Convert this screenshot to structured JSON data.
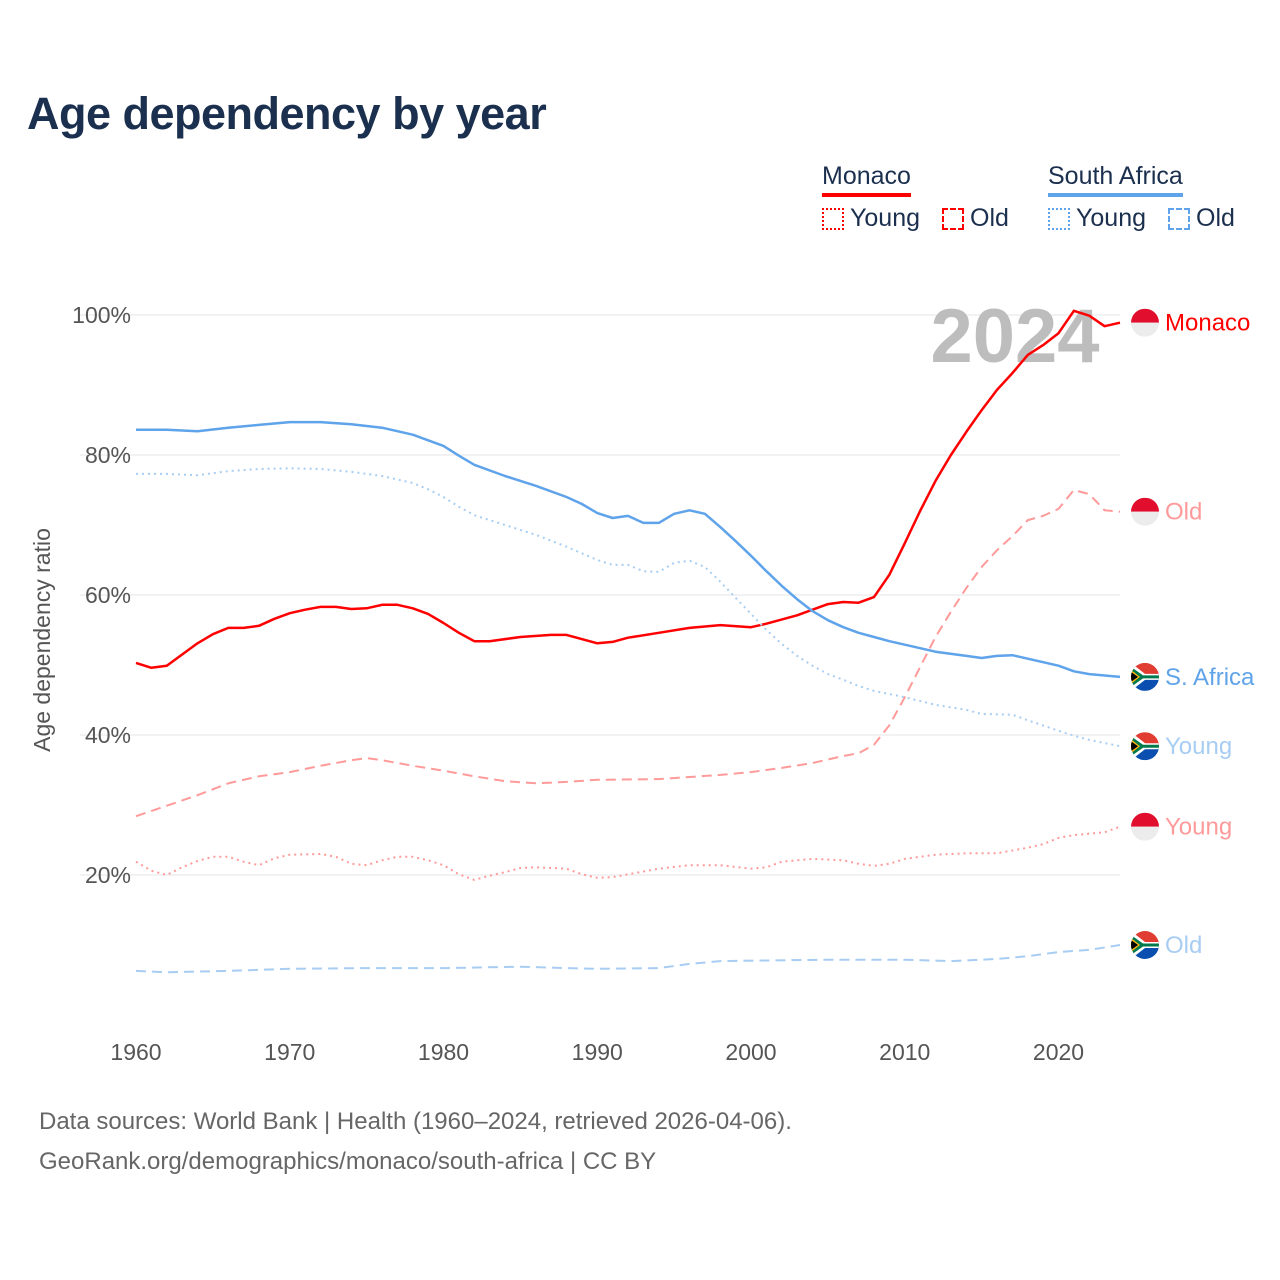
{
  "title": "Age dependency by year",
  "legend": {
    "countries": [
      {
        "name": "Monaco",
        "color": "#ff0000",
        "items": [
          {
            "label": "Young",
            "style": "dotted"
          },
          {
            "label": "Old",
            "style": "dashed"
          }
        ]
      },
      {
        "name": "South Africa",
        "color": "#5fa3ea",
        "items": [
          {
            "label": "Young",
            "style": "dotted"
          },
          {
            "label": "Old",
            "style": "dashed"
          }
        ]
      }
    ]
  },
  "year_watermark": "2024",
  "footer": {
    "line1": "Data sources: World Bank | Health (1960–2024, retrieved 2026-04-06).",
    "line2": "GeoRank.org/demographics/monaco/south-africa | CC BY"
  },
  "chart_data": {
    "type": "line",
    "title": "Age dependency by year",
    "xlabel": "",
    "ylabel": "Age dependency ratio",
    "xlim": [
      1960,
      2024
    ],
    "ylim": [
      0,
      100
    ],
    "x_ticks": [
      1960,
      1970,
      1980,
      1990,
      2000,
      2010,
      2020
    ],
    "y_ticks": [
      20,
      40,
      60,
      80,
      100
    ],
    "y_tick_labels": [
      "20%",
      "40%",
      "60%",
      "80%",
      "100%"
    ],
    "grid": true,
    "series": [
      {
        "name": "Monaco",
        "end_label": "Monaco",
        "country": "monaco",
        "color": "#ff0000",
        "dash": "solid",
        "x": [
          1960,
          1961,
          1962,
          1964,
          1965,
          1966,
          1967,
          1968,
          1969,
          1970,
          1971,
          1972,
          1973,
          1974,
          1975,
          1976,
          1977,
          1978,
          1979,
          1980,
          1981,
          1982,
          1983,
          1985,
          1987,
          1988,
          1990,
          1991,
          1992,
          1994,
          1996,
          1998,
          2000,
          2001,
          2003,
          2005,
          2006,
          2007,
          2008,
          2009,
          2010,
          2011,
          2012,
          2013,
          2014,
          2015,
          2016,
          2017,
          2018,
          2019,
          2020,
          2021,
          2022,
          2023,
          2024
        ],
        "y": [
          50.3,
          49.6,
          49.9,
          53.1,
          54.4,
          55.3,
          55.3,
          55.6,
          56.6,
          57.4,
          57.9,
          58.3,
          58.3,
          58.0,
          58.1,
          58.6,
          58.6,
          58.1,
          57.3,
          56.0,
          54.6,
          53.4,
          53.4,
          54.0,
          54.3,
          54.3,
          53.1,
          53.3,
          53.9,
          54.6,
          55.3,
          55.7,
          55.4,
          55.9,
          57.1,
          58.7,
          59.0,
          58.9,
          59.7,
          62.9,
          67.4,
          72.0,
          76.3,
          80.0,
          83.3,
          86.4,
          89.3,
          91.7,
          94.3,
          95.7,
          97.4,
          100.6,
          99.9,
          98.4,
          98.9
        ]
      },
      {
        "name": "Monaco Old",
        "end_label": "Old",
        "country": "monaco",
        "color": "#ff9a9a",
        "dash": "dashed",
        "x": [
          1960,
          1962,
          1964,
          1966,
          1968,
          1970,
          1972,
          1974,
          1975,
          1976,
          1978,
          1980,
          1982,
          1984,
          1986,
          1988,
          1990,
          1994,
          1996,
          1998,
          2000,
          2002,
          2004,
          2006,
          2007,
          2008,
          2009,
          2010,
          2011,
          2012,
          2013,
          2014,
          2015,
          2016,
          2017,
          2018,
          2019,
          2020,
          2021,
          2022,
          2023,
          2024
        ],
        "y": [
          28.4,
          29.9,
          31.4,
          33.1,
          34.1,
          34.7,
          35.6,
          36.4,
          36.7,
          36.4,
          35.6,
          34.9,
          34.1,
          33.4,
          33.1,
          33.3,
          33.6,
          33.7,
          34.0,
          34.3,
          34.7,
          35.3,
          36.0,
          37.0,
          37.4,
          38.6,
          41.4,
          45.4,
          49.7,
          54.0,
          57.6,
          61.0,
          64.0,
          66.4,
          68.4,
          70.7,
          71.3,
          72.3,
          75.0,
          74.4,
          72.1,
          71.9
        ]
      },
      {
        "name": "South Africa",
        "end_label": "S. Africa",
        "country": "south-africa",
        "color": "#5fa3ea",
        "dash": "solid",
        "x": [
          1960,
          1962,
          1964,
          1966,
          1968,
          1970,
          1972,
          1974,
          1976,
          1977,
          1978,
          1980,
          1981,
          1982,
          1984,
          1986,
          1988,
          1989,
          1990,
          1991,
          1992,
          1993,
          1994,
          1995,
          1996,
          1997,
          1998,
          1999,
          2000,
          2001,
          2002,
          2003,
          2004,
          2005,
          2006,
          2007,
          2008,
          2009,
          2010,
          2012,
          2014,
          2015,
          2016,
          2017,
          2018,
          2020,
          2021,
          2022,
          2024
        ],
        "y": [
          83.6,
          83.6,
          83.4,
          83.9,
          84.3,
          84.7,
          84.7,
          84.4,
          83.9,
          83.4,
          82.9,
          81.3,
          79.9,
          78.6,
          77.0,
          75.6,
          74.0,
          73.0,
          71.7,
          71.0,
          71.3,
          70.3,
          70.3,
          71.6,
          72.1,
          71.6,
          69.7,
          67.7,
          65.6,
          63.4,
          61.3,
          59.4,
          57.7,
          56.4,
          55.4,
          54.6,
          54.0,
          53.4,
          52.9,
          51.9,
          51.3,
          51.0,
          51.3,
          51.4,
          50.9,
          49.9,
          49.1,
          48.7,
          48.3
        ]
      },
      {
        "name": "South Africa Young",
        "end_label": "Young",
        "country": "south-africa",
        "color": "#a8cdf3",
        "dash": "dotted",
        "x": [
          1960,
          1962,
          1964,
          1966,
          1968,
          1970,
          1972,
          1974,
          1976,
          1978,
          1979,
          1980,
          1981,
          1982,
          1984,
          1986,
          1988,
          1990,
          1991,
          1992,
          1993,
          1994,
          1995,
          1996,
          1997,
          1998,
          1999,
          2000,
          2001,
          2002,
          2003,
          2004,
          2005,
          2006,
          2007,
          2008,
          2010,
          2012,
          2014,
          2015,
          2017,
          2018,
          2020,
          2021,
          2022,
          2024
        ],
        "y": [
          77.3,
          77.3,
          77.1,
          77.7,
          78.0,
          78.1,
          78.0,
          77.6,
          77.0,
          76.0,
          75.1,
          74.0,
          72.6,
          71.4,
          70.0,
          68.6,
          66.9,
          65.0,
          64.3,
          64.3,
          63.4,
          63.3,
          64.6,
          64.9,
          64.0,
          61.9,
          59.6,
          57.3,
          55.0,
          53.0,
          51.3,
          49.9,
          48.7,
          47.9,
          47.0,
          46.3,
          45.4,
          44.3,
          43.6,
          43.0,
          42.9,
          42.1,
          40.6,
          39.9,
          39.3,
          38.4
        ]
      },
      {
        "name": "Monaco Young",
        "end_label": "Young",
        "country": "monaco",
        "color": "#ff9a9a",
        "dash": "dotted",
        "x": [
          1960,
          1961,
          1962,
          1963,
          1964,
          1965,
          1966,
          1967,
          1968,
          1969,
          1970,
          1972,
          1973,
          1974,
          1975,
          1976,
          1977,
          1978,
          1979,
          1980,
          1981,
          1982,
          1983,
          1984,
          1985,
          1986,
          1988,
          1989,
          1990,
          1991,
          1992,
          1994,
          1996,
          1998,
          2000,
          2001,
          2002,
          2004,
          2006,
          2007,
          2008,
          2009,
          2010,
          2012,
          2014,
          2016,
          2018,
          2019,
          2020,
          2021,
          2023,
          2024
        ],
        "y": [
          21.9,
          20.6,
          20.0,
          21.1,
          22.0,
          22.6,
          22.6,
          21.9,
          21.4,
          22.4,
          22.9,
          23.0,
          22.6,
          21.6,
          21.4,
          22.1,
          22.6,
          22.6,
          22.1,
          21.4,
          20.1,
          19.3,
          19.9,
          20.4,
          21.0,
          21.1,
          20.9,
          20.1,
          19.6,
          19.7,
          20.1,
          20.9,
          21.4,
          21.4,
          20.9,
          21.1,
          21.9,
          22.3,
          22.1,
          21.6,
          21.3,
          21.6,
          22.3,
          22.9,
          23.1,
          23.1,
          23.9,
          24.4,
          25.3,
          25.7,
          26.1,
          26.9
        ]
      },
      {
        "name": "South Africa Old",
        "end_label": "Old",
        "country": "south-africa",
        "color": "#a8cdf3",
        "dash": "dashed",
        "x": [
          1960,
          1962,
          1966,
          1970,
          1975,
          1980,
          1985,
          1988,
          1990,
          1994,
          1996,
          1998,
          2005,
          2010,
          2013,
          2016,
          2018,
          2020,
          2022,
          2024
        ],
        "y": [
          6.3,
          6.1,
          6.3,
          6.6,
          6.7,
          6.7,
          6.9,
          6.7,
          6.6,
          6.7,
          7.3,
          7.7,
          7.9,
          7.9,
          7.7,
          8.0,
          8.4,
          9.0,
          9.3,
          10.0
        ]
      }
    ]
  }
}
